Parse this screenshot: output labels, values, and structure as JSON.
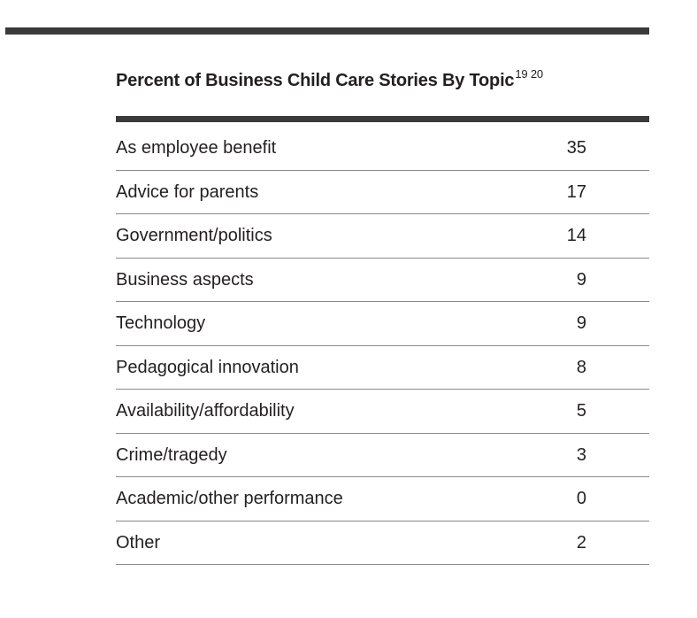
{
  "chart_data": {
    "type": "table",
    "title": "Percent of Business Child Care Stories By Topic",
    "title_footnotes": "19 20",
    "rows": [
      {
        "label": "As employee benefit",
        "value": 35
      },
      {
        "label": "Advice for parents",
        "value": 17
      },
      {
        "label": "Government/politics",
        "value": 14
      },
      {
        "label": "Business aspects",
        "value": 9
      },
      {
        "label": "Technology",
        "value": 9
      },
      {
        "label": "Pedagogical innovation",
        "value": 8
      },
      {
        "label": "Availability/affordability",
        "value": 5
      },
      {
        "label": "Crime/tragedy",
        "value": 3
      },
      {
        "label": "Academic/other performance",
        "value": 0
      },
      {
        "label": "Other",
        "value": 2
      }
    ]
  }
}
